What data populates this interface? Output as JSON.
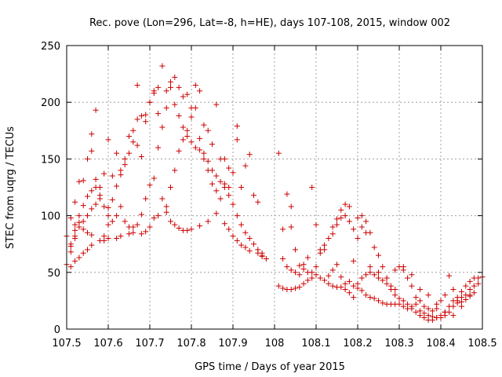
{
  "chart_data": {
    "type": "scatter",
    "title": "Rec. pove (Lon=296, Lat=-8, h=HE), days 107-108, 2015, window 002",
    "xlabel": "GPS time / Days of year 2015",
    "ylabel": "STEC from uqrg / TECUs",
    "xlim": [
      107.5,
      108.5
    ],
    "ylim": [
      0,
      250
    ],
    "xticks": [
      "107.5",
      "107.6",
      "107.7",
      "107.8",
      "107.9",
      "108",
      "108.1",
      "108.2",
      "108.3",
      "108.4",
      "108.5"
    ],
    "yticks": [
      "0",
      "50",
      "100",
      "150",
      "200",
      "250"
    ],
    "grid": true,
    "marker": "plus",
    "color": "#cc0000",
    "points": [
      [
        107.5,
        57
      ],
      [
        107.51,
        55
      ],
      [
        107.51,
        68
      ],
      [
        107.51,
        75
      ],
      [
        107.52,
        60
      ],
      [
        107.52,
        80
      ],
      [
        107.52,
        87
      ],
      [
        107.53,
        63
      ],
      [
        107.53,
        90
      ],
      [
        107.54,
        67
      ],
      [
        107.54,
        88
      ],
      [
        107.55,
        70
      ],
      [
        107.55,
        85
      ],
      [
        107.56,
        74
      ],
      [
        107.56,
        83
      ],
      [
        107.58,
        78
      ],
      [
        107.59,
        78
      ],
      [
        107.6,
        80
      ],
      [
        107.62,
        80
      ],
      [
        107.63,
        82
      ],
      [
        107.65,
        84
      ],
      [
        107.66,
        85
      ],
      [
        107.68,
        84
      ],
      [
        107.69,
        86
      ],
      [
        107.7,
        90
      ],
      [
        107.71,
        98
      ],
      [
        107.72,
        100
      ],
      [
        107.74,
        103
      ],
      [
        107.75,
        95
      ],
      [
        107.76,
        92
      ],
      [
        107.77,
        89
      ],
      [
        107.78,
        87
      ],
      [
        107.79,
        87
      ],
      [
        107.8,
        88
      ],
      [
        107.82,
        91
      ],
      [
        107.84,
        95
      ],
      [
        107.86,
        102
      ],
      [
        107.88,
        93
      ],
      [
        107.89,
        88
      ],
      [
        107.9,
        82
      ],
      [
        107.91,
        78
      ],
      [
        107.92,
        74
      ],
      [
        107.93,
        72
      ],
      [
        107.94,
        69
      ],
      [
        107.96,
        67
      ],
      [
        107.97,
        64
      ],
      [
        107.5,
        82
      ],
      [
        107.51,
        98
      ],
      [
        107.52,
        112
      ],
      [
        107.53,
        130
      ],
      [
        107.54,
        131
      ],
      [
        107.55,
        150
      ],
      [
        107.56,
        157
      ],
      [
        107.56,
        172
      ],
      [
        107.57,
        125
      ],
      [
        107.57,
        193
      ],
      [
        107.58,
        125
      ],
      [
        107.59,
        137
      ],
      [
        107.6,
        107
      ],
      [
        107.6,
        167
      ],
      [
        107.61,
        135
      ],
      [
        107.62,
        155
      ],
      [
        107.63,
        140
      ],
      [
        107.64,
        145
      ],
      [
        107.65,
        170
      ],
      [
        107.66,
        175
      ],
      [
        107.67,
        162
      ],
      [
        107.67,
        215
      ],
      [
        107.68,
        152
      ],
      [
        107.69,
        189
      ],
      [
        107.7,
        200
      ],
      [
        107.71,
        208
      ],
      [
        107.72,
        213
      ],
      [
        107.73,
        232
      ],
      [
        107.74,
        210
      ],
      [
        107.75,
        218
      ],
      [
        107.76,
        222
      ],
      [
        107.77,
        213
      ],
      [
        107.78,
        205
      ],
      [
        107.79,
        207
      ],
      [
        107.8,
        195
      ],
      [
        107.81,
        215
      ],
      [
        107.82,
        210
      ],
      [
        107.83,
        180
      ],
      [
        107.84,
        175
      ],
      [
        107.85,
        163
      ],
      [
        107.86,
        198
      ],
      [
        107.87,
        150
      ],
      [
        107.88,
        150
      ],
      [
        107.89,
        142
      ],
      [
        107.9,
        138
      ],
      [
        107.91,
        167
      ],
      [
        107.91,
        179
      ],
      [
        107.92,
        125
      ],
      [
        107.93,
        144
      ],
      [
        107.94,
        154
      ],
      [
        107.95,
        118
      ],
      [
        107.96,
        112
      ],
      [
        107.51,
        73
      ],
      [
        107.52,
        82
      ],
      [
        107.53,
        94
      ],
      [
        107.54,
        95
      ],
      [
        107.55,
        100
      ],
      [
        107.56,
        106
      ],
      [
        107.57,
        110
      ],
      [
        107.58,
        115
      ],
      [
        107.59,
        82
      ],
      [
        107.6,
        92
      ],
      [
        107.61,
        95
      ],
      [
        107.62,
        100
      ],
      [
        107.63,
        108
      ],
      [
        107.64,
        95
      ],
      [
        107.65,
        90
      ],
      [
        107.66,
        90
      ],
      [
        107.67,
        92
      ],
      [
        107.68,
        101
      ],
      [
        107.69,
        115
      ],
      [
        107.7,
        127
      ],
      [
        107.71,
        133
      ],
      [
        107.72,
        160
      ],
      [
        107.73,
        115
      ],
      [
        107.74,
        108
      ],
      [
        107.75,
        125
      ],
      [
        107.76,
        140
      ],
      [
        107.77,
        157
      ],
      [
        107.78,
        167
      ],
      [
        107.79,
        175
      ],
      [
        107.8,
        187
      ],
      [
        107.81,
        195
      ],
      [
        107.82,
        168
      ],
      [
        107.83,
        150
      ],
      [
        107.84,
        140
      ],
      [
        107.85,
        128
      ],
      [
        107.86,
        122
      ],
      [
        107.87,
        115
      ],
      [
        107.88,
        128
      ],
      [
        107.89,
        125
      ],
      [
        107.9,
        110
      ],
      [
        107.91,
        100
      ],
      [
        107.92,
        92
      ],
      [
        107.93,
        85
      ],
      [
        107.94,
        80
      ],
      [
        107.95,
        75
      ],
      [
        107.96,
        70
      ],
      [
        107.97,
        65
      ],
      [
        107.52,
        92
      ],
      [
        107.53,
        100
      ],
      [
        107.54,
        109
      ],
      [
        107.55,
        117
      ],
      [
        107.56,
        122
      ],
      [
        107.57,
        132
      ],
      [
        107.58,
        118
      ],
      [
        107.59,
        108
      ],
      [
        107.6,
        100
      ],
      [
        107.61,
        114
      ],
      [
        107.62,
        126
      ],
      [
        107.63,
        136
      ],
      [
        107.64,
        150
      ],
      [
        107.65,
        155
      ],
      [
        107.66,
        165
      ],
      [
        107.67,
        185
      ],
      [
        107.68,
        188
      ],
      [
        107.69,
        183
      ],
      [
        107.7,
        200
      ],
      [
        107.71,
        210
      ],
      [
        107.72,
        190
      ],
      [
        107.73,
        178
      ],
      [
        107.74,
        195
      ],
      [
        107.75,
        213
      ],
      [
        107.76,
        198
      ],
      [
        107.77,
        188
      ],
      [
        107.78,
        178
      ],
      [
        107.79,
        170
      ],
      [
        107.8,
        165
      ],
      [
        107.81,
        160
      ],
      [
        107.82,
        158
      ],
      [
        107.83,
        155
      ],
      [
        107.84,
        148
      ],
      [
        107.85,
        140
      ],
      [
        107.86,
        135
      ],
      [
        107.87,
        130
      ],
      [
        107.88,
        125
      ],
      [
        107.89,
        118
      ],
      [
        108.01,
        38
      ],
      [
        108.02,
        36
      ],
      [
        108.03,
        35
      ],
      [
        108.04,
        35
      ],
      [
        108.05,
        36
      ],
      [
        108.06,
        37
      ],
      [
        108.07,
        40
      ],
      [
        108.08,
        43
      ],
      [
        108.09,
        45
      ],
      [
        108.1,
        48
      ],
      [
        108.11,
        45
      ],
      [
        108.12,
        43
      ],
      [
        108.13,
        40
      ],
      [
        108.14,
        38
      ],
      [
        108.15,
        37
      ],
      [
        108.16,
        37
      ],
      [
        108.17,
        35
      ],
      [
        108.18,
        32
      ],
      [
        108.19,
        28
      ],
      [
        108.2,
        40
      ],
      [
        108.21,
        45
      ],
      [
        108.22,
        48
      ],
      [
        108.23,
        50
      ],
      [
        108.24,
        48
      ],
      [
        108.25,
        45
      ],
      [
        108.26,
        43
      ],
      [
        108.27,
        40
      ],
      [
        108.28,
        35
      ],
      [
        108.29,
        30
      ],
      [
        108.3,
        27
      ],
      [
        108.31,
        25
      ],
      [
        108.32,
        22
      ],
      [
        108.33,
        18
      ],
      [
        108.34,
        15
      ],
      [
        108.35,
        12
      ],
      [
        108.36,
        10
      ],
      [
        108.37,
        8
      ],
      [
        108.38,
        8
      ],
      [
        108.39,
        10
      ],
      [
        108.4,
        12
      ],
      [
        108.41,
        15
      ],
      [
        108.42,
        20
      ],
      [
        108.43,
        25
      ],
      [
        108.44,
        28
      ],
      [
        108.45,
        33
      ],
      [
        108.46,
        38
      ],
      [
        108.47,
        42
      ],
      [
        108.48,
        45
      ],
      [
        108.01,
        155
      ],
      [
        108.02,
        88
      ],
      [
        108.03,
        119
      ],
      [
        108.04,
        108
      ],
      [
        108.04,
        90
      ],
      [
        108.05,
        70
      ],
      [
        108.06,
        56
      ],
      [
        108.07,
        53
      ],
      [
        108.08,
        50
      ],
      [
        108.09,
        125
      ],
      [
        108.1,
        92
      ],
      [
        108.11,
        70
      ],
      [
        108.12,
        74
      ],
      [
        108.13,
        80
      ],
      [
        108.14,
        84
      ],
      [
        108.15,
        92
      ],
      [
        108.16,
        98
      ],
      [
        108.17,
        110
      ],
      [
        108.18,
        108
      ],
      [
        108.19,
        60
      ],
      [
        108.2,
        80
      ],
      [
        108.21,
        100
      ],
      [
        108.22,
        95
      ],
      [
        108.23,
        85
      ],
      [
        108.24,
        72
      ],
      [
        108.25,
        65
      ],
      [
        108.26,
        55
      ],
      [
        108.27,
        45
      ],
      [
        108.28,
        38
      ],
      [
        108.29,
        35
      ],
      [
        108.3,
        55
      ],
      [
        108.31,
        52
      ],
      [
        108.32,
        45
      ],
      [
        108.33,
        38
      ],
      [
        108.34,
        28
      ],
      [
        108.35,
        25
      ],
      [
        108.36,
        20
      ],
      [
        108.37,
        18
      ],
      [
        108.38,
        16
      ],
      [
        108.39,
        18
      ],
      [
        108.4,
        25
      ],
      [
        108.41,
        30
      ],
      [
        108.42,
        47
      ],
      [
        108.43,
        35
      ],
      [
        108.44,
        25
      ],
      [
        108.45,
        28
      ],
      [
        108.46,
        30
      ],
      [
        108.47,
        35
      ],
      [
        108.48,
        38
      ],
      [
        108.02,
        62
      ],
      [
        108.03,
        55
      ],
      [
        108.04,
        52
      ],
      [
        108.05,
        50
      ],
      [
        108.06,
        48
      ],
      [
        108.07,
        57
      ],
      [
        108.08,
        63
      ],
      [
        108.09,
        50
      ],
      [
        108.1,
        55
      ],
      [
        108.11,
        67
      ],
      [
        108.12,
        70
      ],
      [
        108.13,
        47
      ],
      [
        108.14,
        52
      ],
      [
        108.15,
        57
      ],
      [
        108.16,
        46
      ],
      [
        108.17,
        40
      ],
      [
        108.18,
        42
      ],
      [
        108.19,
        38
      ],
      [
        108.2,
        36
      ],
      [
        108.21,
        34
      ],
      [
        108.22,
        30
      ],
      [
        108.23,
        28
      ],
      [
        108.24,
        27
      ],
      [
        108.25,
        25
      ],
      [
        108.26,
        23
      ],
      [
        108.27,
        22
      ],
      [
        108.28,
        22
      ],
      [
        108.29,
        22
      ],
      [
        108.3,
        22
      ],
      [
        108.31,
        20
      ],
      [
        108.32,
        18
      ],
      [
        108.33,
        20
      ],
      [
        108.34,
        22
      ],
      [
        108.35,
        16
      ],
      [
        108.36,
        14
      ],
      [
        108.37,
        12
      ],
      [
        108.38,
        11
      ],
      [
        108.39,
        10
      ],
      [
        108.4,
        10
      ],
      [
        108.41,
        12
      ],
      [
        108.42,
        15
      ],
      [
        108.43,
        20
      ],
      [
        108.44,
        23
      ],
      [
        108.45,
        24
      ],
      [
        108.46,
        26
      ],
      [
        108.47,
        29
      ],
      [
        108.48,
        32
      ],
      [
        108.49,
        40
      ],
      [
        108.5,
        46
      ],
      [
        107.97,
        67
      ],
      [
        107.98,
        62
      ],
      [
        108.14,
        90
      ],
      [
        108.15,
        97
      ],
      [
        108.16,
        105
      ],
      [
        108.17,
        100
      ],
      [
        108.18,
        95
      ],
      [
        108.19,
        88
      ],
      [
        108.2,
        98
      ],
      [
        108.21,
        90
      ],
      [
        108.22,
        85
      ],
      [
        108.23,
        55
      ],
      [
        108.25,
        50
      ],
      [
        108.27,
        45
      ],
      [
        108.29,
        52
      ],
      [
        108.31,
        55
      ],
      [
        108.33,
        48
      ],
      [
        108.35,
        35
      ],
      [
        108.37,
        30
      ],
      [
        108.39,
        22
      ],
      [
        108.41,
        15
      ],
      [
        108.43,
        12
      ],
      [
        108.45,
        20
      ],
      [
        108.47,
        30
      ],
      [
        108.49,
        45
      ]
    ]
  }
}
